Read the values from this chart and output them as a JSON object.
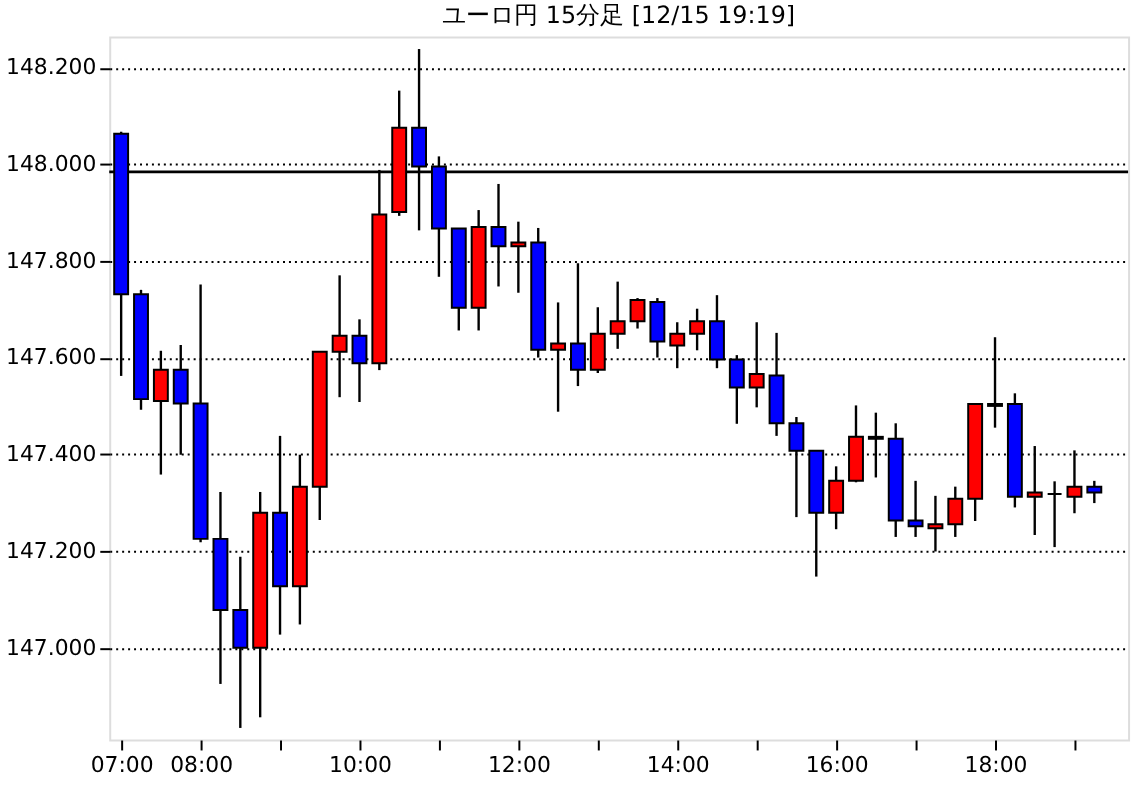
{
  "chart_data": {
    "type": "candlestick",
    "title": "ユーロ円 15分足 [12/15 19:19]",
    "x": [
      7,
      7.25,
      7.5,
      7.75,
      8,
      8.25,
      8.5,
      8.75,
      9,
      9.25,
      9.5,
      9.75,
      10,
      10.25,
      10.5,
      10.75,
      11,
      11.25,
      11.5,
      11.75,
      12,
      12.25,
      12.5,
      12.75,
      13,
      13.25,
      13.5,
      13.75,
      14,
      14.25,
      14.5,
      14.75,
      15,
      15.25,
      15.5,
      15.75,
      16,
      16.25,
      16.5,
      16.75,
      17,
      17.25,
      17.5,
      17.75,
      18,
      18.25,
      18.5,
      18.75,
      19,
      19.25
    ],
    "ohlc": [
      [
        148.063,
        148.067,
        147.562,
        147.731
      ],
      [
        147.731,
        147.74,
        147.492,
        147.514
      ],
      [
        147.51,
        147.614,
        147.358,
        147.575
      ],
      [
        147.575,
        147.626,
        147.399,
        147.505
      ],
      [
        147.505,
        147.751,
        147.218,
        147.225
      ],
      [
        147.225,
        147.322,
        146.925,
        147.078
      ],
      [
        147.078,
        147.188,
        146.834,
        147.0
      ],
      [
        147.0,
        147.322,
        146.856,
        147.279
      ],
      [
        147.279,
        147.438,
        147.027,
        147.127
      ],
      [
        147.127,
        147.399,
        147.048,
        147.333
      ],
      [
        147.333,
        147.612,
        147.264,
        147.612
      ],
      [
        147.612,
        147.77,
        147.518,
        147.645
      ],
      [
        147.645,
        147.679,
        147.508,
        147.588
      ],
      [
        147.588,
        147.988,
        147.574,
        147.896
      ],
      [
        147.901,
        148.152,
        147.893,
        148.075
      ],
      [
        148.075,
        148.238,
        147.863,
        147.995
      ],
      [
        147.995,
        148.016,
        147.767,
        147.867
      ],
      [
        147.867,
        147.867,
        147.656,
        147.703
      ],
      [
        147.703,
        147.905,
        147.656,
        147.87
      ],
      [
        147.87,
        147.959,
        147.747,
        147.83
      ],
      [
        147.83,
        147.881,
        147.734,
        147.838
      ],
      [
        147.838,
        147.868,
        147.6,
        147.616
      ],
      [
        147.616,
        147.714,
        147.488,
        147.629
      ],
      [
        147.629,
        147.795,
        147.541,
        147.575
      ],
      [
        147.575,
        147.704,
        147.568,
        147.649
      ],
      [
        147.649,
        147.757,
        147.618,
        147.675
      ],
      [
        147.675,
        147.723,
        147.66,
        147.719
      ],
      [
        147.715,
        147.723,
        147.6,
        147.633
      ],
      [
        147.625,
        147.673,
        147.578,
        147.649
      ],
      [
        147.649,
        147.701,
        147.615,
        147.675
      ],
      [
        147.675,
        147.729,
        147.578,
        147.596
      ],
      [
        147.596,
        147.605,
        147.463,
        147.538
      ],
      [
        147.538,
        147.673,
        147.497,
        147.566
      ],
      [
        147.563,
        147.651,
        147.438,
        147.464
      ],
      [
        147.464,
        147.477,
        147.27,
        147.407
      ],
      [
        147.407,
        147.407,
        147.147,
        147.279
      ],
      [
        147.279,
        147.375,
        147.245,
        147.345
      ],
      [
        147.345,
        147.501,
        147.342,
        147.436
      ],
      [
        147.432,
        147.486,
        147.352,
        147.436
      ],
      [
        147.432,
        147.464,
        147.229,
        147.263
      ],
      [
        147.263,
        147.345,
        147.229,
        147.251
      ],
      [
        147.247,
        147.314,
        147.199,
        147.255
      ],
      [
        147.255,
        147.333,
        147.229,
        147.308
      ],
      [
        147.308,
        147.504,
        147.262,
        147.504
      ],
      [
        147.5,
        147.642,
        147.455,
        147.504
      ],
      [
        147.504,
        147.526,
        147.29,
        147.312
      ],
      [
        147.312,
        147.417,
        147.233,
        147.321
      ],
      [
        147.318,
        147.344,
        147.208,
        147.318
      ],
      [
        147.312,
        147.408,
        147.278,
        147.333
      ],
      [
        147.333,
        147.345,
        147.299,
        147.321
      ]
    ],
    "colors": [
      "#0000ff",
      "#0000ff",
      "#ff0000",
      "#0000ff",
      "#0000ff",
      "#0000ff",
      "#0000ff",
      "#ff0000",
      "#0000ff",
      "#ff0000",
      "#ff0000",
      "#ff0000",
      "#0000ff",
      "#ff0000",
      "#ff0000",
      "#0000ff",
      "#0000ff",
      "#0000ff",
      "#ff0000",
      "#0000ff",
      "#ff0000",
      "#0000ff",
      "#ff0000",
      "#0000ff",
      "#ff0000",
      "#ff0000",
      "#ff0000",
      "#0000ff",
      "#ff0000",
      "#ff0000",
      "#0000ff",
      "#0000ff",
      "#ff0000",
      "#0000ff",
      "#0000ff",
      "#0000ff",
      "#ff0000",
      "#ff0000",
      "#ff0000",
      "#0000ff",
      "#0000ff",
      "#ff0000",
      "#ff0000",
      "#ff0000",
      "#000000",
      "#0000ff",
      "#ff0000",
      "#000000",
      "#ff0000",
      "#0000ff"
    ],
    "xlim": [
      6.85,
      19.675
    ],
    "xticks": [
      {
        "value": 7,
        "label": "07:00"
      },
      {
        "value": 8,
        "label": "08:00"
      },
      {
        "value": 9,
        "label": null
      },
      {
        "value": 10,
        "label": "10:00"
      },
      {
        "value": 11,
        "label": null
      },
      {
        "value": 12,
        "label": "12:00"
      },
      {
        "value": 13,
        "label": null
      },
      {
        "value": 14,
        "label": "14:00"
      },
      {
        "value": 15,
        "label": null
      },
      {
        "value": 16,
        "label": "16:00"
      },
      {
        "value": 17,
        "label": null
      },
      {
        "value": 18,
        "label": "18:00"
      },
      {
        "value": 19,
        "label": null
      }
    ],
    "ylim": [
      146.81,
      148.264
    ],
    "yticks": [
      {
        "value": 147.0,
        "label": "147.000"
      },
      {
        "value": 147.2,
        "label": "147.200"
      },
      {
        "value": 147.4,
        "label": "147.400"
      },
      {
        "value": 147.6,
        "label": "147.600"
      },
      {
        "value": 147.8,
        "label": "147.800"
      },
      {
        "value": 148.0,
        "label": "148.000"
      },
      {
        "value": 148.2,
        "label": "148.200"
      }
    ],
    "grid": "y",
    "ref_lines": [
      {
        "axis": "y",
        "value": 147.984,
        "color": "#000000",
        "line_style": "solid"
      }
    ]
  }
}
